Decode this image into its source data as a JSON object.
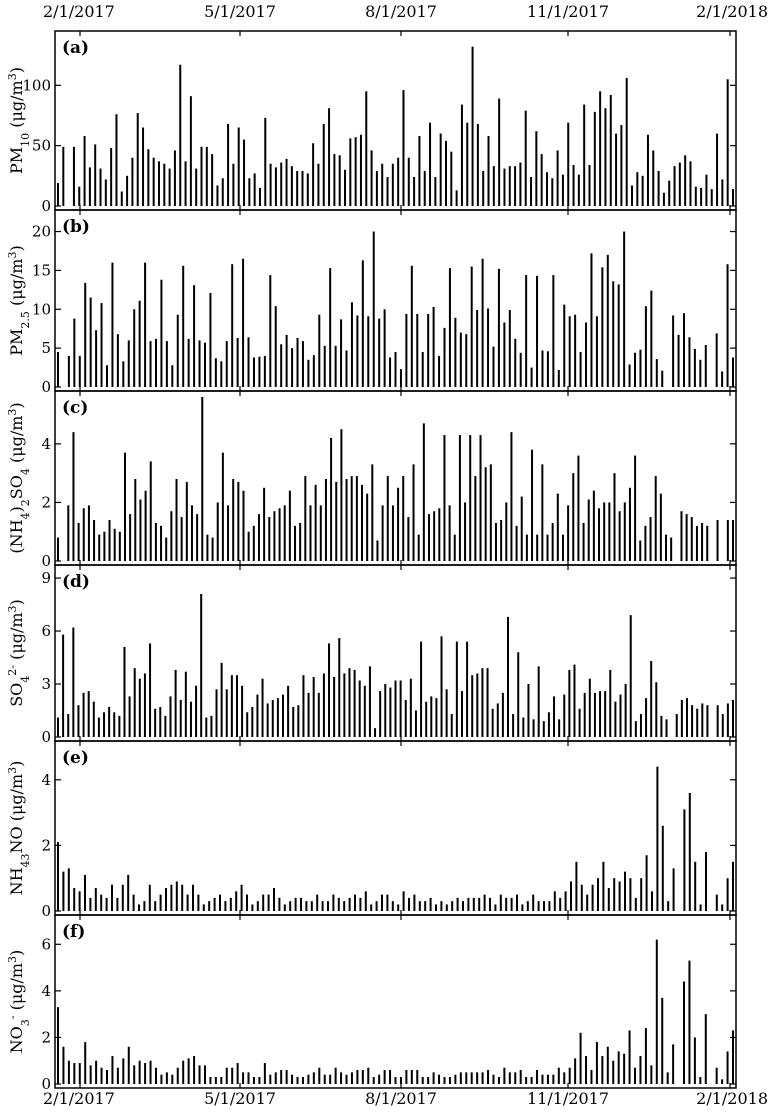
{
  "figure": {
    "date_ticks": [
      "2/1/2017",
      "5/1/2017",
      "8/1/2017",
      "11/1/2017",
      "2/1/2018"
    ],
    "bar_color": "#000000"
  },
  "chart_data": [
    {
      "type": "bar",
      "panel": "(a)",
      "ylabel": "PM10 (μg/m3)",
      "ylabel_parts": {
        "base": "PM",
        "sub": "10",
        "unit": " (μg/m",
        "unit_sup": "3",
        "close": ")"
      },
      "ylim": [
        0,
        140
      ],
      "yticks": [
        0,
        50,
        100
      ],
      "values": [
        19,
        49,
        0,
        49,
        16,
        58,
        32,
        51,
        31,
        22,
        48,
        76,
        12,
        25,
        40,
        77,
        65,
        47,
        40,
        37,
        35,
        31,
        46,
        117,
        37,
        91,
        31,
        49,
        49,
        43,
        17,
        23,
        68,
        35,
        65,
        55,
        23,
        27,
        15,
        73,
        35,
        32,
        36,
        39,
        33,
        29,
        29,
        27,
        52,
        35,
        68,
        81,
        43,
        42,
        30,
        56,
        57,
        59,
        95,
        46,
        29,
        35,
        24,
        35,
        40,
        96,
        40,
        24,
        58,
        29,
        69,
        24,
        60,
        54,
        45,
        13,
        84,
        69,
        132,
        68,
        29,
        58,
        33,
        89,
        31,
        33,
        33,
        36,
        79,
        24,
        62,
        43,
        28,
        23,
        46,
        26,
        69,
        34,
        26,
        84,
        34,
        78,
        95,
        81,
        92,
        60,
        67,
        106,
        17,
        28,
        25,
        59,
        46,
        29,
        11,
        21,
        33,
        36,
        42,
        37,
        16,
        15,
        26,
        14,
        60,
        22,
        105,
        14
      ]
    },
    {
      "type": "bar",
      "panel": "(b)",
      "ylabel": "PM2.5 (μg/m3)",
      "ylabel_parts": {
        "base": "PM",
        "sub": "2.5",
        "unit": " (μg/m",
        "unit_sup": "3",
        "close": ")"
      },
      "ylim": [
        0,
        22
      ],
      "yticks": [
        0,
        5,
        10,
        15,
        20
      ],
      "values": [
        4.5,
        0,
        4,
        8.8,
        4,
        13.4,
        11.5,
        7.3,
        10.8,
        2.8,
        16,
        6.8,
        3.3,
        6,
        10,
        11.1,
        16,
        5.9,
        6.2,
        13.8,
        5.9,
        2.8,
        9.3,
        15.6,
        6.2,
        13.1,
        6,
        5.7,
        12.1,
        3.7,
        3.3,
        5.9,
        15.8,
        6.3,
        16.5,
        6.4,
        3.8,
        3.9,
        4,
        14.4,
        10.4,
        5.5,
        6.7,
        5,
        6.3,
        5.9,
        3.5,
        4.1,
        9.3,
        5.3,
        15.3,
        5.3,
        8.7,
        4.7,
        10.9,
        9.2,
        16.3,
        9.1,
        20,
        8.8,
        10,
        3.8,
        4.5,
        2.3,
        9.4,
        15.6,
        9.4,
        4.5,
        9.4,
        10.3,
        4,
        7.6,
        15.3,
        8.9,
        7,
        6.8,
        15.5,
        9.9,
        16.5,
        10.1,
        5.2,
        15.2,
        8.3,
        9.9,
        6.2,
        4.4,
        14.4,
        2.5,
        14.3,
        4.7,
        4.6,
        14.4,
        2.2,
        10.6,
        9.1,
        9.3,
        4.5,
        8.3,
        17.2,
        9.1,
        15.4,
        17,
        13.6,
        13.2,
        20,
        2.9,
        4.4,
        4.8,
        10.4,
        12.4,
        3.6,
        2.1,
        0,
        9.2,
        6.7,
        9.5,
        6.4,
        4.9,
        3.5,
        5.4,
        0,
        6.9,
        2,
        15.8,
        3.8
      ]
    },
    {
      "type": "bar",
      "panel": "(c)",
      "ylabel": "(NH4)2SO4 (μg/m3)",
      "ylabel_parts": {
        "base": "(NH",
        "sub": "4",
        "mid": ")",
        "sub2": "2",
        "tail": "SO",
        "sub3": "4",
        "unit": " (μg/m",
        "unit_sup": "3",
        "close": ")"
      },
      "ylim": [
        0,
        5.6
      ],
      "yticks": [
        0,
        2,
        4
      ],
      "values": [
        0.8,
        0,
        1.9,
        4.4,
        1.3,
        1.8,
        1.9,
        1.4,
        0.9,
        1.0,
        1.4,
        1.1,
        1.0,
        3.7,
        1.6,
        2.8,
        2.1,
        2.4,
        3.4,
        1.3,
        1.2,
        0.8,
        1.7,
        2.8,
        1.5,
        2.7,
        1.9,
        1.6,
        5.6,
        0.9,
        0.8,
        2.0,
        3.7,
        1.9,
        2.8,
        2.7,
        2.4,
        1.0,
        1.2,
        1.6,
        2.5,
        1.5,
        1.7,
        1.8,
        1.9,
        2.4,
        1.2,
        1.3,
        2.9,
        1.9,
        2.6,
        1.9,
        2.8,
        4.2,
        2.7,
        4.5,
        2.8,
        2.9,
        2.9,
        2.6,
        2.3,
        3.3,
        0.7,
        1.9,
        2.9,
        1.9,
        2.5,
        2.9,
        1.5,
        3.3,
        0.9,
        4.7,
        1.6,
        1.7,
        1.8,
        4.3,
        1.9,
        0.9,
        4.3,
        2.0,
        4.3,
        2.9,
        4.3,
        3.2,
        3.3,
        1.3,
        1.4,
        2.0,
        4.4,
        1.2,
        2.2,
        0.9,
        3.8,
        0.9,
        3.3,
        0.9,
        1.3,
        2.3,
        0.9,
        1.9,
        3.0,
        3.6,
        1.3,
        2.1,
        2.4,
        1.8,
        2.0,
        2.0,
        3.0,
        1.7,
        2.0,
        2.5,
        3.6,
        0.7,
        1.2,
        1.5,
        2.9,
        2.3,
        0.9,
        0.8,
        0,
        1.7,
        1.6,
        1.5,
        1.2,
        1.3,
        1.2,
        0,
        1.4,
        0,
        1.4,
        1.4
      ]
    },
    {
      "type": "bar",
      "panel": "(d)",
      "ylabel": "SO42- (μg/m3)",
      "ylabel_parts": {
        "base": "SO",
        "sub": "4",
        "sup": "2-",
        "unit": " (μg/m",
        "unit_sup": "3",
        "close": ")"
      },
      "ylim": [
        0,
        9.4
      ],
      "yticks": [
        0,
        3,
        6,
        9
      ],
      "values": [
        1.1,
        5.8,
        1.3,
        6.2,
        1.8,
        2.5,
        2.6,
        2.0,
        1.1,
        1.4,
        1.7,
        1.4,
        1.2,
        5.1,
        2.3,
        3.9,
        3.3,
        3.6,
        5.3,
        1.6,
        1.7,
        1.2,
        2.3,
        3.8,
        2.1,
        3.7,
        2.0,
        2.9,
        8.1,
        1.1,
        1.2,
        2.7,
        4.2,
        2.7,
        3.5,
        3.5,
        2.9,
        1.4,
        1.7,
        2.4,
        3.3,
        1.9,
        2.1,
        2.2,
        2.4,
        2.9,
        1.7,
        1.8,
        3.5,
        2.5,
        3.4,
        2.5,
        3.6,
        5.3,
        3.4,
        5.6,
        3.6,
        3.9,
        3.8,
        3.2,
        2.9,
        4.0,
        0.5,
        2.6,
        3.0,
        2.8,
        3.2,
        3.2,
        2.1,
        3.3,
        1.5,
        5.4,
        2.0,
        2.3,
        2.2,
        5.7,
        2.7,
        1.3,
        5.4,
        2.6,
        5.4,
        3.5,
        3.6,
        3.9,
        3.9,
        1.6,
        1.9,
        2.5,
        6.8,
        1.3,
        4.8,
        1.1,
        3.0,
        1.0,
        4.0,
        0.9,
        1.4,
        2.3,
        1.0,
        2.4,
        3.8,
        4.1,
        1.6,
        2.5,
        3.3,
        2.5,
        2.6,
        2.6,
        3.8,
        2.0,
        2.4,
        3.0,
        6.9,
        0.9,
        1.3,
        2.2,
        4.3,
        3.1,
        1.2,
        1.0,
        0,
        1.3,
        2.1,
        2.2,
        1.8,
        1.6,
        1.9,
        1.8,
        0,
        1.8,
        1.3,
        1.9,
        2.1
      ]
    },
    {
      "type": "bar",
      "panel": "(e)",
      "ylabel": "NH4NO3 (μg/m3)",
      "ylabel_parts": {
        "base": "NH",
        "sub": "4",
        "tail": "NO",
        "sub2": "3",
        "unit": " (μg/m",
        "unit_sup": "3",
        "close": ")"
      },
      "ylim": [
        0,
        5.0
      ],
      "yticks": [
        0,
        2,
        4
      ],
      "values": [
        2.1,
        1.2,
        1.3,
        0.7,
        0.6,
        1.1,
        0.4,
        0.7,
        0.5,
        0.4,
        0.8,
        0.4,
        0.8,
        1.1,
        0.5,
        0.2,
        0.3,
        0.8,
        0.3,
        0.5,
        0.7,
        0.8,
        0.9,
        0.8,
        0.5,
        0.8,
        0.5,
        0.2,
        0.3,
        0.4,
        0.5,
        0.3,
        0.4,
        0.6,
        0.8,
        0.5,
        0.2,
        0.3,
        0.5,
        0.5,
        0.7,
        0.4,
        0.2,
        0.3,
        0.4,
        0.4,
        0.3,
        0.3,
        0.5,
        0.3,
        0.3,
        0.5,
        0.4,
        0.3,
        0.4,
        0.5,
        0.4,
        0.6,
        0.2,
        0.3,
        0.5,
        0.5,
        0.3,
        0.2,
        0.6,
        0.4,
        0.5,
        0.3,
        0.3,
        0.4,
        0.2,
        0.3,
        0.2,
        0.3,
        0.4,
        0.3,
        0.4,
        0.4,
        0.4,
        0.5,
        0.4,
        0.2,
        0.5,
        0.4,
        0.4,
        0.5,
        0.2,
        0.3,
        0.5,
        0.3,
        0.3,
        0.3,
        0.6,
        0.4,
        0.6,
        0.9,
        1.5,
        0.8,
        0.5,
        0.8,
        1.0,
        1.5,
        0.7,
        1.0,
        0.9,
        1.2,
        1.0,
        0.4,
        1.0,
        1.7,
        0.6,
        4.4,
        2.6,
        0.3,
        1.3,
        0,
        3.1,
        3.6,
        1.5,
        0.2,
        1.8,
        0,
        0.5,
        0.2,
        1.0,
        1.5
      ]
    },
    {
      "type": "bar",
      "panel": "(f)",
      "ylabel": "NO3- (μg/m3)",
      "ylabel_parts": {
        "base": "NO",
        "sub": "3",
        "sup": "-",
        "unit": " (μg/m",
        "unit_sup": "3",
        "close": ")"
      },
      "ylim": [
        0,
        7.0
      ],
      "yticks": [
        0,
        2,
        4,
        6
      ],
      "values": [
        3.3,
        1.6,
        1.0,
        0.9,
        0.9,
        1.8,
        0.8,
        1.0,
        0.7,
        0.6,
        1.2,
        0.7,
        1.1,
        1.6,
        0.8,
        1.0,
        0.9,
        1.0,
        0.7,
        0.4,
        0.5,
        0.4,
        0.7,
        1.0,
        1.1,
        1.2,
        0.8,
        0.8,
        0.3,
        0.3,
        0.3,
        0.7,
        0.7,
        0.9,
        0.5,
        0.5,
        0.3,
        0.3,
        0.9,
        0.4,
        0.5,
        0.6,
        0.6,
        0.4,
        0.3,
        0.3,
        0.4,
        0.5,
        0.7,
        0.4,
        0.4,
        0.7,
        0.5,
        0.4,
        0.5,
        0.6,
        0.6,
        0.7,
        0.3,
        0.4,
        0.6,
        0.6,
        0.3,
        0.3,
        0.6,
        0.6,
        0.6,
        0.3,
        0.3,
        0.5,
        0.4,
        0.3,
        0.3,
        0.4,
        0.5,
        0.5,
        0.5,
        0.5,
        0.5,
        0.6,
        0.4,
        0.3,
        0.7,
        0.5,
        0.5,
        0.6,
        0.3,
        0.3,
        0.6,
        0.4,
        0.4,
        0.4,
        0.7,
        0.5,
        0.7,
        1.1,
        2.2,
        1.2,
        0.6,
        1.8,
        1.2,
        1.6,
        1.0,
        1.4,
        1.3,
        2.3,
        0.7,
        1.2,
        2.4,
        0.8,
        6.2,
        3.7,
        0.5,
        1.7,
        0,
        4.4,
        5.3,
        2.0,
        0.3,
        3.0,
        0,
        0.7,
        0.2,
        1.4,
        2.3
      ]
    }
  ]
}
